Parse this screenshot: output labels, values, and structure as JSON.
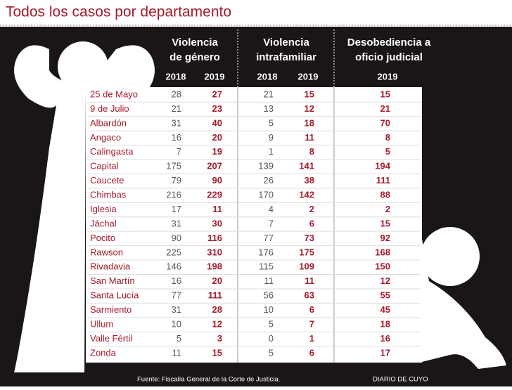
{
  "header": {
    "title": "Todos los casos por departamento"
  },
  "table": {
    "groups": [
      {
        "lines": [
          "Violencia",
          "de género"
        ],
        "years": [
          "2018",
          "2019"
        ]
      },
      {
        "lines": [
          "Violencia",
          "intrafamiliar"
        ],
        "years": [
          "2018",
          "2019"
        ]
      },
      {
        "lines": [
          "Desobediencia a",
          "oficio judicial"
        ],
        "years": [
          "2019"
        ]
      }
    ],
    "rows": [
      [
        "25 de Mayo",
        28,
        27,
        21,
        15,
        15
      ],
      [
        "9 de Julio",
        21,
        23,
        13,
        12,
        21
      ],
      [
        "Albardón",
        31,
        40,
        5,
        18,
        70
      ],
      [
        "Angaco",
        16,
        20,
        9,
        11,
        8
      ],
      [
        "Calingasta",
        7,
        19,
        1,
        8,
        5
      ],
      [
        "Capital",
        175,
        207,
        139,
        141,
        194
      ],
      [
        "Caucete",
        79,
        90,
        26,
        38,
        111
      ],
      [
        "Chimbas",
        216,
        229,
        170,
        142,
        88
      ],
      [
        "Iglesia",
        17,
        11,
        4,
        2,
        2
      ],
      [
        "Jáchal",
        31,
        30,
        7,
        6,
        15
      ],
      [
        "Pocito",
        90,
        116,
        77,
        73,
        92
      ],
      [
        "Rawson",
        225,
        310,
        176,
        175,
        168
      ],
      [
        "Rivadavia",
        146,
        198,
        115,
        109,
        150
      ],
      [
        "San Martín",
        16,
        20,
        11,
        11,
        12
      ],
      [
        "Santa Lucía",
        77,
        111,
        56,
        63,
        55
      ],
      [
        "Sarmiento",
        31,
        28,
        10,
        6,
        45
      ],
      [
        "Ullum",
        10,
        12,
        5,
        7,
        18
      ],
      [
        "Valle Fértil",
        5,
        3,
        0,
        1,
        16
      ],
      [
        "Zonda",
        11,
        15,
        5,
        6,
        17
      ]
    ]
  },
  "footer": {
    "source": "Fuente: Fiscalía General de la Corte de Justicia.",
    "brand": "DIARIO DE CUYO"
  }
}
